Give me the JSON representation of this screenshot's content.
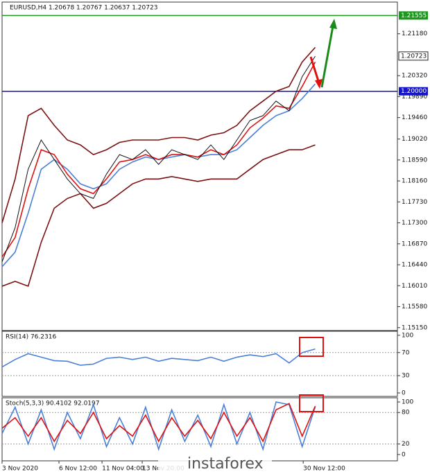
{
  "chart_data": [
    {
      "type": "line",
      "title": "EURUSD,H4 1.20678 1.20767 1.20637 1.20723",
      "x": [
        0,
        1,
        2,
        3,
        4,
        5,
        6,
        7,
        8,
        9,
        10,
        11,
        12,
        13,
        14,
        15,
        16,
        17,
        18,
        19,
        20,
        21,
        22,
        23,
        24
      ],
      "xlim": [
        0,
        30.3
      ],
      "xticks": [
        {
          "value": 0,
          "label": "3 Nov 2020"
        },
        {
          "value": 4.36,
          "label": "6 Nov 12:00"
        },
        {
          "value": 7.66,
          "label": "11 Nov 04:00"
        },
        {
          "value": 10.74,
          "label": "13 Nov 20:00"
        },
        {
          "value": 23.08,
          "label": "30 Nov 12:00"
        }
      ],
      "ylim": [
        1.1509,
        1.2183
      ],
      "yticks": [
        {
          "value": 1.2118,
          "label": "1.21180"
        },
        {
          "value": 1.2032,
          "label": "1.20320"
        },
        {
          "value": 1.1989,
          "label": "1.19890"
        },
        {
          "value": 1.1946,
          "label": "1.19460"
        },
        {
          "value": 1.1902,
          "label": "1.19020"
        },
        {
          "value": 1.1859,
          "label": "1.18590"
        },
        {
          "value": 1.1816,
          "label": "1.18160"
        },
        {
          "value": 1.1773,
          "label": "1.17730"
        },
        {
          "value": 1.173,
          "label": "1.17300"
        },
        {
          "value": 1.1687,
          "label": "1.16870"
        },
        {
          "value": 1.1644,
          "label": "1.16440"
        },
        {
          "value": 1.1601,
          "label": "1.16010"
        },
        {
          "value": 1.1558,
          "label": "1.15580"
        },
        {
          "value": 1.1515,
          "label": "1.15150"
        }
      ],
      "hlines": [
        {
          "value": 1.21555,
          "label": "1.21555",
          "color": "#1a9a1a"
        },
        {
          "value": 1.2,
          "label": "1.20000",
          "color": "#1414c8"
        }
      ],
      "price_label": {
        "value": 1.20723,
        "label": "1.20723"
      },
      "series": [
        {
          "color": "#7a1010",
          "values": [
            1.173,
            1.182,
            1.195,
            1.1965,
            1.193,
            1.19,
            1.189,
            1.187,
            1.188,
            1.1895,
            1.19,
            1.19,
            1.19,
            1.1905,
            1.1905,
            1.19,
            1.191,
            1.1915,
            1.193,
            1.196,
            1.198,
            1.2,
            1.201,
            1.206,
            1.209
          ]
        },
        {
          "color": "#7a1010",
          "values": [
            1.16,
            1.161,
            1.16,
            1.169,
            1.176,
            1.178,
            1.179,
            1.176,
            1.177,
            1.179,
            1.181,
            1.182,
            1.182,
            1.1825,
            1.182,
            1.1815,
            1.182,
            1.182,
            1.182,
            1.184,
            1.186,
            1.187,
            1.188,
            1.188,
            1.189
          ]
        },
        {
          "color": "#4a7fd8",
          "values": [
            1.164,
            1.167,
            1.175,
            1.184,
            1.186,
            1.184,
            1.181,
            1.18,
            1.181,
            1.184,
            1.1855,
            1.1865,
            1.186,
            1.1865,
            1.187,
            1.1865,
            1.187,
            1.187,
            1.188,
            1.1905,
            1.193,
            1.195,
            1.196,
            1.1985,
            1.2015
          ]
        },
        {
          "color": "#e01010",
          "values": [
            1.166,
            1.17,
            1.18,
            1.188,
            1.187,
            1.183,
            1.18,
            1.179,
            1.182,
            1.1855,
            1.186,
            1.187,
            1.186,
            1.187,
            1.187,
            1.1865,
            1.188,
            1.187,
            1.189,
            1.1925,
            1.1945,
            1.197,
            1.1965,
            1.201,
            1.206
          ]
        },
        {
          "color": "#101010",
          "values": [
            1.165,
            1.172,
            1.184,
            1.19,
            1.186,
            1.182,
            1.179,
            1.178,
            1.183,
            1.187,
            1.186,
            1.188,
            1.185,
            1.188,
            1.187,
            1.186,
            1.189,
            1.186,
            1.19,
            1.194,
            1.195,
            1.198,
            1.196,
            1.203,
            1.2072
          ]
        }
      ]
    },
    {
      "type": "line",
      "title": "RSI(14) 76.2316",
      "x": [
        0,
        1,
        2,
        3,
        4,
        5,
        6,
        7,
        8,
        9,
        10,
        11,
        12,
        13,
        14,
        15,
        16,
        17,
        18,
        19,
        20,
        21,
        22,
        23,
        24
      ],
      "xlim": [
        0,
        30.3
      ],
      "ylim": [
        -6,
        107
      ],
      "yticks": [
        100,
        70,
        30,
        0
      ],
      "series": [
        {
          "color": "#4a7fd8",
          "values": [
            45,
            58,
            68,
            62,
            56,
            55,
            48,
            50,
            60,
            62,
            58,
            62,
            55,
            60,
            58,
            56,
            62,
            55,
            62,
            66,
            63,
            68,
            52,
            70,
            76.2316
          ]
        }
      ]
    },
    {
      "type": "line",
      "title": "Stoch(5,3,3) 90.4102 92.0197",
      "x": [
        0,
        1,
        2,
        3,
        4,
        5,
        6,
        7,
        8,
        9,
        10,
        11,
        12,
        13,
        14,
        15,
        16,
        17,
        18,
        19,
        20,
        21,
        22,
        23,
        24
      ],
      "xlim": [
        0,
        30.3
      ],
      "ylim": [
        -12,
        108
      ],
      "yticks": [
        100,
        80,
        20,
        0
      ],
      "series": [
        {
          "color": "#4a7fd8",
          "values": [
            40,
            90,
            20,
            85,
            10,
            80,
            30,
            95,
            15,
            70,
            20,
            90,
            10,
            85,
            25,
            75,
            15,
            95,
            20,
            80,
            10,
            100,
            95,
            15,
            90.4102
          ]
        },
        {
          "color": "#e01010",
          "values": [
            50,
            70,
            35,
            70,
            25,
            65,
            40,
            80,
            30,
            55,
            35,
            75,
            25,
            70,
            35,
            65,
            30,
            80,
            35,
            70,
            25,
            85,
            97,
            35,
            92.0197
          ]
        }
      ]
    }
  ],
  "watermark": "instaforex"
}
